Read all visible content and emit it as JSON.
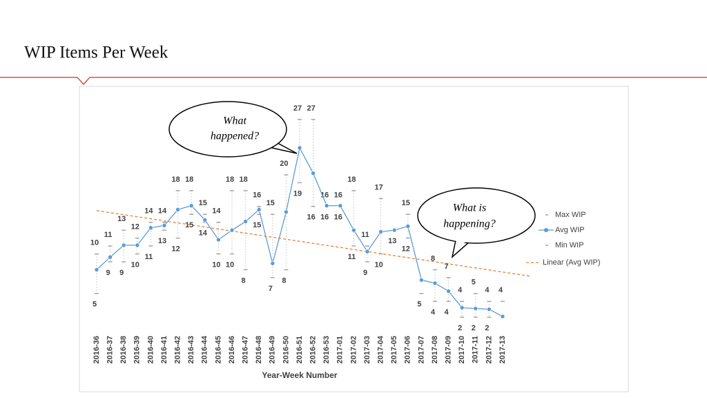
{
  "header": {
    "title": "WIP Items Per Week"
  },
  "chart_data": {
    "type": "line",
    "x_label": "Year-Week Number",
    "categories": [
      "2016-36",
      "2016-37",
      "2016-38",
      "2016-39",
      "2016-40",
      "2016-41",
      "2016-42",
      "2016-43",
      "2016-44",
      "2016-45",
      "2016-46",
      "2016-47",
      "2016-48",
      "2016-49",
      "2016-50",
      "2016-51",
      "2016-52",
      "2016-53",
      "2017-01",
      "2017-02",
      "2017-03",
      "2017-04",
      "2017-05",
      "2017-06",
      "2017-07",
      "2017-08",
      "2017-09",
      "2017-10",
      "2017-11",
      "2017-12",
      "2017-13"
    ],
    "series": [
      {
        "name": "Max WIP",
        "color": "#a6a6a6",
        "values": [
          10,
          11,
          13,
          12,
          14,
          14,
          18,
          18,
          15,
          14,
          18,
          18,
          16,
          15,
          20,
          27,
          27,
          16,
          16,
          18,
          11,
          17,
          null,
          15,
          null,
          8,
          7,
          4,
          5,
          4,
          4
        ]
      },
      {
        "name": "Avg WIP",
        "color": "#5b9bd5",
        "values": [
          8,
          9.6,
          11.1,
          11.1,
          13.3,
          13.6,
          15.6,
          16.1,
          14.3,
          11.8,
          13,
          14.1,
          15.6,
          8.8,
          15.3,
          23.4,
          20.2,
          16.1,
          16.1,
          13,
          10.3,
          12.8,
          13,
          13.5,
          6.7,
          6.3,
          5.3,
          3.2,
          3.1,
          3,
          2.1
        ]
      },
      {
        "name": "Min WIP",
        "color": "#a6a6a6",
        "values": [
          5,
          9,
          9,
          10,
          11,
          13,
          12,
          15,
          14,
          10,
          10,
          8,
          15,
          7,
          8,
          19,
          16,
          16,
          16,
          11,
          9,
          10,
          13,
          12,
          5,
          4,
          4,
          2,
          2,
          2,
          null
        ]
      }
    ],
    "trendline": {
      "name": "Linear (Avg WIP)",
      "color": "#ed7d31"
    },
    "ylim": [
      0,
      30
    ]
  },
  "callouts": [
    {
      "lines": [
        "What",
        "happened?"
      ]
    },
    {
      "lines": [
        "What is",
        "happening?"
      ]
    }
  ]
}
